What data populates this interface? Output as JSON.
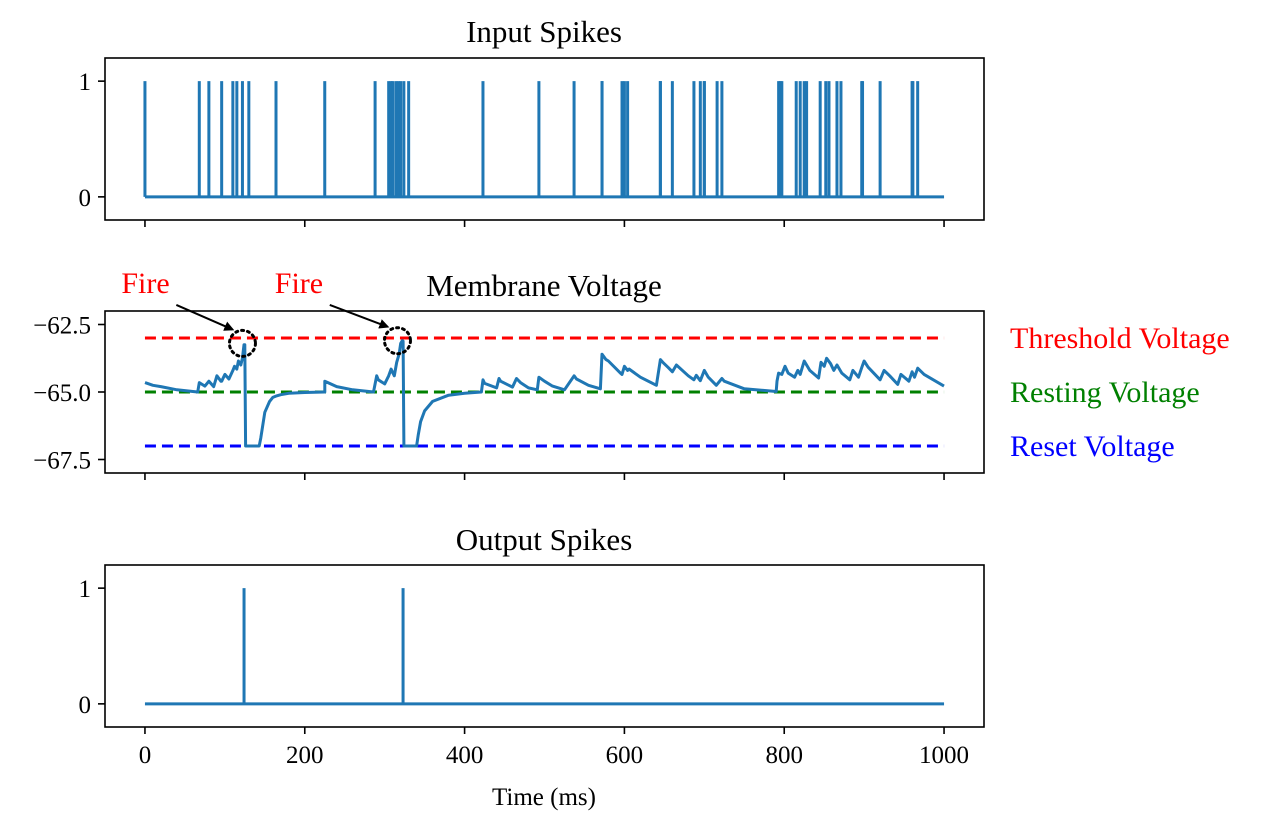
{
  "chart_data": [
    {
      "type": "line",
      "title": "Input Spikes",
      "xlim": [
        -50,
        1050
      ],
      "ylim": [
        -0.2,
        1.2
      ],
      "yticks": [
        0,
        1
      ],
      "x_tick_values": [
        0,
        200,
        400,
        600,
        800,
        1000
      ],
      "x_tick_labels_shown": false,
      "series": [
        {
          "style": "spike-train",
          "color": "#1f77b4",
          "spike_times": [
            0,
            68,
            80,
            96,
            110,
            115,
            122,
            130,
            164,
            225,
            288,
            305,
            308,
            310,
            314,
            317,
            320,
            324,
            330,
            423,
            493,
            537,
            572,
            572,
            597,
            600,
            604,
            645,
            645,
            660,
            687,
            695,
            700,
            700,
            716,
            722,
            793,
            795,
            797,
            815,
            820,
            825,
            828,
            845,
            852,
            856,
            866,
            871,
            897,
            898,
            920,
            960,
            961,
            967
          ]
        }
      ]
    },
    {
      "type": "line",
      "title": "Membrane Voltage",
      "xlim": [
        -50,
        1050
      ],
      "ylim": [
        -68.0,
        -62.0
      ],
      "yticks": [
        -67.5,
        -65.0,
        -62.5
      ],
      "ytick_labels": [
        "−67.5",
        "−65.0",
        "−62.5"
      ],
      "x_tick_values": [
        0,
        200,
        400,
        600,
        800,
        1000
      ],
      "x_tick_labels_shown": false,
      "series": [
        {
          "style": "solid",
          "color": "#1f77b4",
          "x": [
            0,
            10,
            20,
            40,
            60,
            66,
            68,
            75,
            80,
            86,
            90,
            95,
            96,
            100,
            105,
            110,
            112,
            115,
            117,
            120,
            122,
            124,
            125,
            126,
            130,
            143,
            145,
            150,
            156,
            160,
            164,
            170,
            180,
            200,
            225,
            225,
            240,
            260,
            286,
            290,
            292,
            300,
            305,
            308,
            312,
            315,
            318,
            320,
            322,
            323,
            324,
            340,
            342,
            345,
            350,
            360,
            380,
            400,
            421,
            423,
            425,
            440,
            443,
            445,
            460,
            465,
            470,
            480,
            491,
            493,
            500,
            510,
            525,
            537,
            540,
            555,
            570,
            572,
            577,
            580,
            595,
            597,
            600,
            604,
            606,
            620,
            640,
            645,
            648,
            655,
            660,
            665,
            680,
            687,
            690,
            695,
            700,
            705,
            715,
            722,
            725,
            750,
            790,
            791,
            793,
            797,
            801,
            805,
            813,
            817,
            820,
            825,
            828,
            832,
            843,
            846,
            850,
            853,
            858,
            862,
            866,
            872,
            882,
            886,
            893,
            897,
            900,
            905,
            920,
            925,
            932,
            942,
            946,
            956,
            960,
            963,
            967,
            975,
            1000
          ],
          "y": [
            -64.65,
            -64.75,
            -64.8,
            -64.92,
            -64.98,
            -65.0,
            -64.65,
            -64.78,
            -64.6,
            -64.8,
            -64.4,
            -64.6,
            -64.6,
            -64.35,
            -64.52,
            -64.2,
            -64.05,
            -64.15,
            -63.85,
            -64.0,
            -63.75,
            -63.25,
            -63.25,
            -67.0,
            -67.0,
            -67.0,
            -66.7,
            -65.75,
            -65.35,
            -65.2,
            -65.15,
            -65.1,
            -65.05,
            -65.02,
            -65.0,
            -64.6,
            -64.8,
            -64.92,
            -65.0,
            -64.4,
            -64.55,
            -64.7,
            -64.4,
            -64.15,
            -64.4,
            -63.9,
            -63.6,
            -63.2,
            -63.1,
            -63.12,
            -67.0,
            -67.0,
            -66.6,
            -66.1,
            -65.7,
            -65.35,
            -65.12,
            -65.05,
            -65.0,
            -64.55,
            -64.68,
            -64.85,
            -64.5,
            -64.6,
            -64.82,
            -64.5,
            -64.65,
            -64.85,
            -64.92,
            -64.45,
            -64.6,
            -64.78,
            -64.92,
            -64.4,
            -64.52,
            -64.75,
            -64.88,
            -63.6,
            -63.8,
            -63.85,
            -64.3,
            -64.35,
            -64.05,
            -64.2,
            -64.15,
            -64.45,
            -64.75,
            -63.8,
            -63.9,
            -64.1,
            -64.25,
            -64.0,
            -64.4,
            -64.55,
            -64.38,
            -64.58,
            -64.2,
            -64.45,
            -64.75,
            -64.5,
            -64.6,
            -64.88,
            -64.98,
            -64.6,
            -64.3,
            -64.35,
            -64.05,
            -64.3,
            -64.45,
            -64.2,
            -64.35,
            -63.85,
            -64.0,
            -64.2,
            -64.48,
            -63.9,
            -64.05,
            -63.75,
            -63.95,
            -64.2,
            -64.0,
            -64.3,
            -64.55,
            -64.2,
            -64.45,
            -64.1,
            -63.85,
            -64.08,
            -64.55,
            -64.2,
            -64.4,
            -64.72,
            -64.35,
            -64.6,
            -64.25,
            -64.45,
            -64.12,
            -64.35,
            -64.78
          ]
        },
        {
          "name": "Threshold Voltage",
          "style": "dashed",
          "color": "#ff0000",
          "y_const": -63.0,
          "x_range": [
            0,
            1000
          ]
        },
        {
          "name": "Resting Voltage",
          "style": "dashed",
          "color": "#008000",
          "y_const": -65.0,
          "x_range": [
            0,
            1000
          ]
        },
        {
          "name": "Reset Voltage",
          "style": "dashed",
          "color": "#0000ff",
          "y_const": -67.0,
          "x_range": [
            0,
            1000
          ]
        }
      ],
      "annotations": [
        {
          "text": "Fire",
          "color": "#ff0000",
          "arrow_to": [
            122,
            -63.2
          ],
          "text_at": [
            8,
            -61.7
          ],
          "marker": "dotted-circle"
        },
        {
          "text": "Fire",
          "color": "#ff0000",
          "arrow_to": [
            316,
            -63.1
          ],
          "text_at": [
            200,
            -61.7
          ],
          "marker": "dotted-circle"
        }
      ]
    },
    {
      "type": "line",
      "title": "Output Spikes",
      "xlabel": "Time (ms)",
      "xlim": [
        -50,
        1050
      ],
      "ylim": [
        -0.2,
        1.2
      ],
      "yticks": [
        0,
        1
      ],
      "x_tick_values": [
        0,
        200,
        400,
        600,
        800,
        1000
      ],
      "x_tick_labels_shown": true,
      "series": [
        {
          "style": "spike-train",
          "color": "#1f77b4",
          "spike_times": [
            124,
            323
          ]
        }
      ]
    }
  ]
}
